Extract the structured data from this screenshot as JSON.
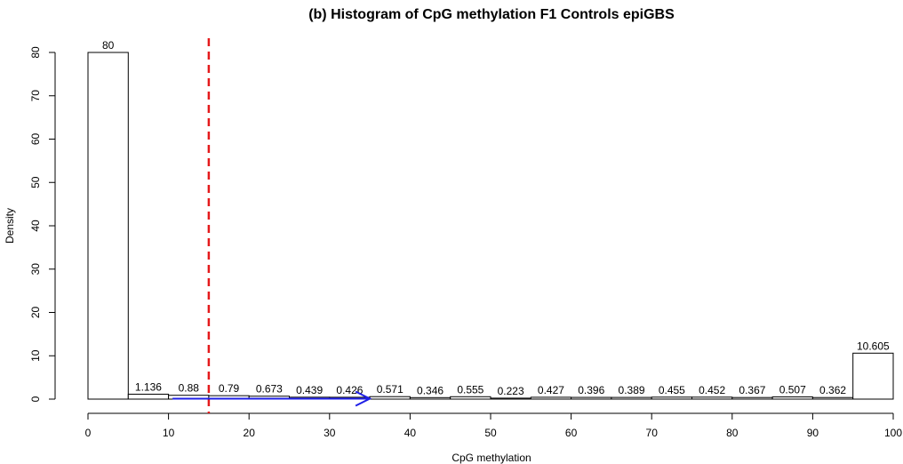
{
  "chart_data": {
    "type": "bar",
    "title": "(b) Histogram of CpG methylation F1 Controls epiGBS",
    "xlabel": "CpG methylation",
    "ylabel": "Density",
    "xlim": [
      0,
      100
    ],
    "ylim": [
      0,
      80
    ],
    "x_ticks": [
      0,
      10,
      20,
      30,
      40,
      50,
      60,
      70,
      80,
      90,
      100
    ],
    "y_ticks": [
      0,
      10,
      20,
      30,
      40,
      50,
      60,
      70,
      80
    ],
    "bin_edges": [
      0,
      5,
      10,
      15,
      20,
      25,
      30,
      35,
      40,
      45,
      50,
      55,
      60,
      65,
      70,
      75,
      80,
      85,
      90,
      95,
      100
    ],
    "values": [
      80,
      1.136,
      0.88,
      0.79,
      0.673,
      0.439,
      0.426,
      0.571,
      0.346,
      0.555,
      0.223,
      0.427,
      0.396,
      0.389,
      0.455,
      0.452,
      0.367,
      0.507,
      0.362,
      10.605
    ],
    "value_labels": [
      "80",
      "1.136",
      "0.88",
      "0.79",
      "0.673",
      "0.439",
      "0.426",
      "0.571",
      "0.346",
      "0.555",
      "0.223",
      "0.427",
      "0.396",
      "0.389",
      "0.455",
      "0.452",
      "0.367",
      "0.507",
      "0.362",
      "10.605"
    ],
    "annotations": {
      "threshold_line": {
        "x": 15,
        "style": "dashed",
        "color": "#e41a1c"
      },
      "arrow": {
        "x_start": 10.5,
        "x_end": 35,
        "y": 0.1,
        "color": "#1f1fe6"
      }
    },
    "grid": false,
    "bar_fill": "#ffffff",
    "bar_stroke": "#000000"
  }
}
